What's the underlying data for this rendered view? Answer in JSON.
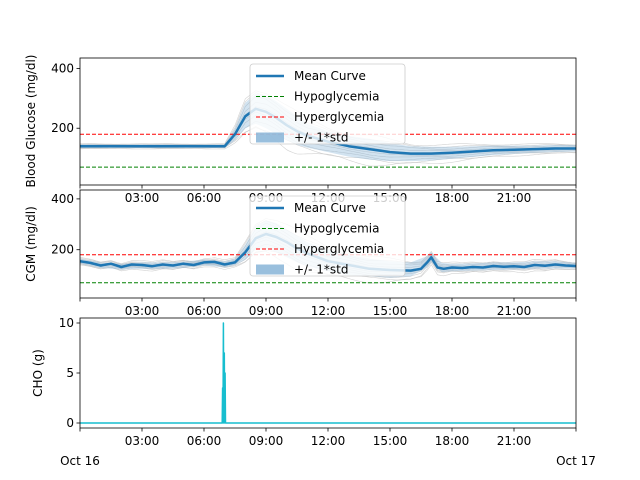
{
  "chart_data": [
    {
      "type": "line",
      "ylabel": "Blood Glucose (mg/dl)",
      "xlabel": "",
      "ylim": [
        10,
        435
      ],
      "yticks": [
        200,
        400
      ],
      "xticks": [
        "03:00",
        "06:00",
        "09:00",
        "12:00",
        "15:00",
        "18:00",
        "21:00"
      ],
      "xtick_hours": [
        3,
        6,
        9,
        12,
        15,
        18,
        21
      ],
      "xlim_hours": [
        0,
        24
      ],
      "hypo_threshold": 70,
      "hyper_threshold": 180,
      "legend": [
        "Mean Curve",
        "Hypoglycemia",
        "Hyperglycemia",
        "+/- 1*std"
      ],
      "legend_position": "upper center",
      "series": [
        {
          "name": "Mean Curve",
          "x": [
            0,
            1,
            2,
            3,
            4,
            5,
            6,
            7,
            7.5,
            8,
            8.5,
            9,
            9.5,
            10,
            10.5,
            11,
            12,
            13,
            14,
            15,
            16,
            17,
            18,
            19,
            20,
            21,
            22,
            23,
            24
          ],
          "y": [
            140,
            140,
            140,
            140,
            140,
            140,
            140,
            140,
            180,
            240,
            265,
            255,
            235,
            210,
            190,
            175,
            155,
            140,
            130,
            120,
            115,
            115,
            118,
            122,
            126,
            128,
            130,
            132,
            132
          ]
        }
      ],
      "std_band": {
        "x": [
          0,
          1,
          2,
          3,
          4,
          5,
          6,
          7,
          7.5,
          8,
          8.5,
          9,
          9.5,
          10,
          10.5,
          11,
          12,
          13,
          14,
          15,
          16,
          17,
          18,
          19,
          20,
          21,
          22,
          23,
          24
        ],
        "lower": [
          134,
          134,
          134,
          134,
          134,
          134,
          134,
          134,
          160,
          200,
          215,
          200,
          180,
          160,
          145,
          135,
          120,
          105,
          95,
          90,
          90,
          92,
          98,
          104,
          110,
          114,
          118,
          120,
          122
        ],
        "upper": [
          146,
          146,
          146,
          146,
          146,
          146,
          146,
          146,
          200,
          285,
          315,
          310,
          290,
          265,
          240,
          215,
          190,
          175,
          165,
          150,
          140,
          138,
          138,
          140,
          142,
          142,
          142,
          144,
          144
        ]
      },
      "colors": {
        "mean": "#1f77b4",
        "hypo": "#008000",
        "hyper": "#ff0000",
        "band": "#7fafd4",
        "traces": "#bfbfbf"
      }
    },
    {
      "type": "line",
      "ylabel": "CGM (mg/dl)",
      "xlabel": "",
      "ylim": [
        10,
        435
      ],
      "yticks": [
        200,
        400
      ],
      "xticks": [
        "03:00",
        "06:00",
        "09:00",
        "12:00",
        "15:00",
        "18:00",
        "21:00"
      ],
      "xtick_hours": [
        3,
        6,
        9,
        12,
        15,
        18,
        21
      ],
      "xlim_hours": [
        0,
        24
      ],
      "hypo_threshold": 70,
      "hyper_threshold": 180,
      "legend": [
        "Mean Curve",
        "Hypoglycemia",
        "Hyperglycemia",
        "+/- 1*std"
      ],
      "legend_position": "upper center",
      "series": [
        {
          "name": "Mean Curve",
          "x": [
            0,
            0.5,
            1,
            1.5,
            2,
            2.5,
            3,
            3.5,
            4,
            4.5,
            5,
            5.5,
            6,
            6.5,
            7,
            7.5,
            8,
            8.5,
            9,
            9.5,
            10,
            10.5,
            11,
            12,
            13,
            14,
            15,
            16,
            16.5,
            16.8,
            17,
            17.3,
            17.6,
            18,
            18.5,
            19,
            19.5,
            20,
            20.5,
            21,
            21.5,
            22,
            22.5,
            23,
            23.5,
            24
          ],
          "y": [
            155,
            148,
            138,
            145,
            132,
            142,
            140,
            135,
            142,
            138,
            145,
            140,
            150,
            152,
            142,
            150,
            190,
            245,
            262,
            250,
            230,
            205,
            185,
            155,
            140,
            125,
            120,
            118,
            125,
            150,
            170,
            130,
            125,
            130,
            128,
            132,
            130,
            136,
            133,
            135,
            132,
            140,
            137,
            142,
            138,
            136
          ]
        }
      ],
      "std_band": {
        "x": [
          0,
          1,
          2,
          3,
          4,
          5,
          6,
          7,
          7.5,
          8,
          8.5,
          9,
          9.5,
          10,
          10.5,
          11,
          12,
          13,
          14,
          15,
          16,
          16.8,
          17,
          17.5,
          18,
          19,
          20,
          21,
          22,
          23,
          24
        ],
        "lower": [
          145,
          128,
          122,
          125,
          125,
          128,
          138,
          130,
          140,
          160,
          200,
          205,
          190,
          170,
          150,
          135,
          115,
          100,
          95,
          90,
          95,
          130,
          150,
          112,
          115,
          118,
          120,
          122,
          125,
          126,
          126
        ],
        "upper": [
          165,
          150,
          145,
          150,
          150,
          152,
          162,
          155,
          165,
          220,
          290,
          315,
          305,
          280,
          255,
          230,
          200,
          180,
          165,
          155,
          150,
          175,
          190,
          148,
          145,
          146,
          150,
          150,
          155,
          155,
          148
        ]
      },
      "colors": {
        "mean": "#1f77b4",
        "hypo": "#008000",
        "hyper": "#ff0000",
        "band": "#7fafd4",
        "traces": "#bfbfbf"
      }
    },
    {
      "type": "line",
      "ylabel": "CHO (g)",
      "xlabel": "",
      "ylim": [
        -0.5,
        10.5
      ],
      "yticks": [
        0,
        5,
        10
      ],
      "xticks": [
        "03:00",
        "06:00",
        "09:00",
        "12:00",
        "15:00",
        "18:00",
        "21:00"
      ],
      "xtick_hours": [
        3,
        6,
        9,
        12,
        15,
        18,
        21
      ],
      "xlim_hours": [
        0,
        24
      ],
      "extra_xticks": [
        "Oct 16",
        "Oct 17"
      ],
      "series": [
        {
          "name": "CHO",
          "x": [
            0,
            6.88,
            6.9,
            6.92,
            6.94,
            6.96,
            6.98,
            7.0,
            7.02,
            7.04,
            24
          ],
          "y": [
            0,
            0,
            3.5,
            0,
            10,
            0,
            7,
            0,
            5,
            0,
            0
          ]
        }
      ],
      "colors": {
        "line": "#17becf"
      }
    }
  ]
}
